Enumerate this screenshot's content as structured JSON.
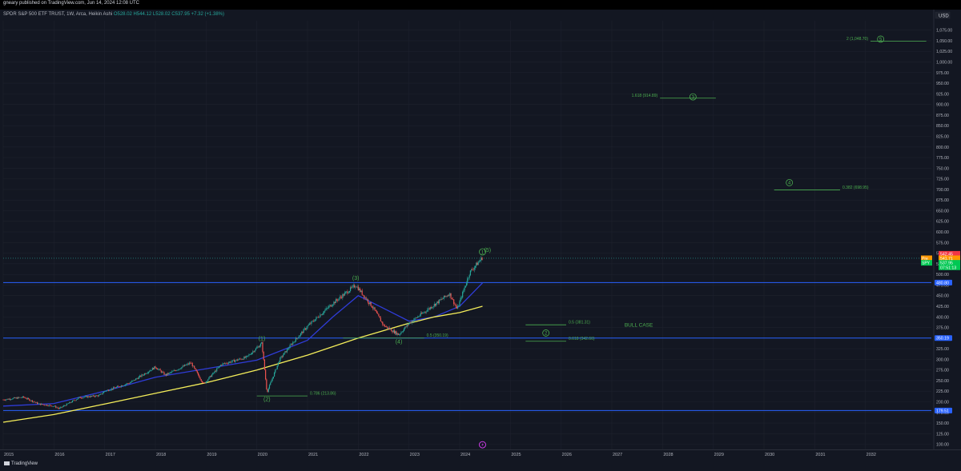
{
  "publisher_line": "gneary published on TradingView.com, Jun 14, 2024 12:08 UTC",
  "legend": {
    "symbol": "SPDR S&P 500 ETF TRUST, 1W, Arca, Heikin Ashi",
    "open": "O528.02",
    "high": "H544.12",
    "low": "L528.02",
    "close": "C537.95",
    "change": "+7.32 (+1.38%)"
  },
  "currency_button": "USD",
  "footer_brand": "TradingView",
  "colors": {
    "background": "#131722",
    "up_candle": "#26a69a",
    "down_candle": "#ef5350",
    "ma_fast": "#2f3cd8",
    "ma_slow": "#f5ee5a",
    "level_line": "#2962ff",
    "annotation": "#4caf50",
    "price_tag": "#00c853"
  },
  "chart_data": {
    "type": "candlestick",
    "title": "",
    "x_ticks": [
      "2015",
      "2016",
      "2017",
      "2018",
      "2019",
      "2020",
      "2021",
      "2022",
      "2023",
      "2024",
      "2025",
      "2026",
      "2027",
      "2028",
      "2029",
      "2030",
      "2031",
      "2032"
    ],
    "y_ticks": [
      "100.00",
      "125.00",
      "150.00",
      "175.00",
      "200.00",
      "225.00",
      "250.00",
      "275.00",
      "300.00",
      "325.00",
      "350.00",
      "375.00",
      "400.00",
      "425.00",
      "450.00",
      "475.00",
      "500.00",
      "525.00",
      "550.00",
      "575.00",
      "600.00",
      "625.00",
      "650.00",
      "675.00",
      "700.00",
      "725.00",
      "750.00",
      "775.00",
      "800.00",
      "825.00",
      "850.00",
      "875.00",
      "900.00",
      "925.00",
      "950.00",
      "975.00",
      "1,000.00",
      "1,025.00",
      "1,050.00",
      "1,075.00"
    ],
    "ylim": [
      88,
      1097
    ],
    "xlim": [
      2015.0,
      2033.3
    ],
    "price_path": [
      [
        2015.0,
        205
      ],
      [
        2015.4,
        211
      ],
      [
        2015.7,
        195
      ],
      [
        2016.0,
        190
      ],
      [
        2016.1,
        184
      ],
      [
        2016.5,
        210
      ],
      [
        2016.9,
        215
      ],
      [
        2017.0,
        225
      ],
      [
        2017.5,
        245
      ],
      [
        2018.0,
        282
      ],
      [
        2018.2,
        263
      ],
      [
        2018.7,
        292
      ],
      [
        2018.95,
        242
      ],
      [
        2019.3,
        288
      ],
      [
        2019.8,
        305
      ],
      [
        2020.1,
        338
      ],
      [
        2020.2,
        222
      ],
      [
        2020.45,
        300
      ],
      [
        2020.7,
        338
      ],
      [
        2021.0,
        378
      ],
      [
        2021.5,
        432
      ],
      [
        2021.95,
        475
      ],
      [
        2022.3,
        420
      ],
      [
        2022.5,
        380
      ],
      [
        2022.8,
        358
      ],
      [
        2023.0,
        385
      ],
      [
        2023.4,
        420
      ],
      [
        2023.8,
        455
      ],
      [
        2023.95,
        418
      ],
      [
        2024.2,
        505
      ],
      [
        2024.45,
        540
      ]
    ],
    "moving_averages": [
      {
        "color": "#2f3cd8",
        "values": [
          [
            2015.0,
            190
          ],
          [
            2016.0,
            196
          ],
          [
            2017.0,
            225
          ],
          [
            2018.0,
            258
          ],
          [
            2019.0,
            278
          ],
          [
            2020.0,
            298
          ],
          [
            2021.0,
            345
          ],
          [
            2021.5,
            400
          ],
          [
            2022.0,
            450
          ],
          [
            2022.5,
            420
          ],
          [
            2023.0,
            390
          ],
          [
            2023.5,
            400
          ],
          [
            2024.0,
            425
          ],
          [
            2024.45,
            480
          ]
        ]
      },
      {
        "color": "#f5ee5a",
        "values": [
          [
            2015.0,
            152
          ],
          [
            2016.0,
            170
          ],
          [
            2017.0,
            195
          ],
          [
            2018.0,
            220
          ],
          [
            2019.0,
            245
          ],
          [
            2020.0,
            275
          ],
          [
            2021.0,
            310
          ],
          [
            2022.0,
            350
          ],
          [
            2023.0,
            385
          ],
          [
            2023.5,
            400
          ],
          [
            2024.0,
            410
          ],
          [
            2024.45,
            425
          ]
        ]
      }
    ],
    "horizontal_levels": [
      {
        "value": 480.8,
        "label": "480.80"
      },
      {
        "value": 350.19,
        "label": "350.19"
      },
      {
        "value": 179.51,
        "label": "179.51"
      }
    ],
    "price_tags": [
      {
        "value": 548.5,
        "label": "542.45",
        "color": "#f23645",
        "prefix": ""
      },
      {
        "value": 537.9,
        "label": "541.71",
        "color": "#ff9800",
        "prefix": "Pre"
      },
      {
        "value": 527.3,
        "label": "537.95",
        "color": "#00c853",
        "prefix": "SPY"
      },
      {
        "value": 516.7,
        "label": "07:51:13",
        "color": "#00c853",
        "prefix": ""
      }
    ],
    "current_price_line": 537.95,
    "wave_labels": [
      {
        "text": "(1)",
        "x": 2020.1,
        "y": 345
      },
      {
        "text": "(2)",
        "x": 2020.2,
        "y": 202
      },
      {
        "text": "(3)",
        "x": 221.95,
        "y": 487
      },
      {
        "text": "(4)",
        "x": 2022.8,
        "y": 337
      },
      {
        "text": "(5)",
        "x": 2024.55,
        "y": 553
      }
    ],
    "circled_labels": [
      {
        "text": "1",
        "x": 2024.45,
        "y": 553
      },
      {
        "text": "2",
        "x": 2025.7,
        "y": 362
      },
      {
        "text": "3",
        "x": 2028.6,
        "y": 918
      },
      {
        "text": "4",
        "x": 2030.5,
        "y": 716
      },
      {
        "text": "5",
        "x": 2032.3,
        "y": 1054
      }
    ],
    "fib_levels": [
      {
        "text": "0.786 (213.86)",
        "x1": 2020.0,
        "x2": 2021.0,
        "y": 213.86,
        "label_side": "right"
      },
      {
        "text": "0.5 (350.19)",
        "x1": 2021.7,
        "x2": 2023.3,
        "y": 350.19,
        "label_side": "right"
      },
      {
        "text": "0.5 (381.31)",
        "x1": 2025.3,
        "x2": 2026.1,
        "y": 381.31,
        "label_side": "right"
      },
      {
        "text": "0.618 (342.66)",
        "x1": 2025.3,
        "x2": 2026.1,
        "y": 342.66,
        "label_side": "right"
      },
      {
        "text": "1.618 (914.89)",
        "x1": 2027.95,
        "x2": 2029.05,
        "y": 914.89,
        "label_side": "left"
      },
      {
        "text": "0.382 (698.95)",
        "x1": 2030.2,
        "x2": 2031.5,
        "y": 698.95,
        "label_side": "right"
      },
      {
        "text": "2 (1,048.70)",
        "x1": 2032.1,
        "x2": 2033.2,
        "y": 1048.7,
        "label_side": "left"
      }
    ],
    "annotation_text": {
      "text": "BULL CASE",
      "x": 2027.25,
      "y": 377
    },
    "event_marker": {
      "x": 2024.45,
      "y": 99
    }
  }
}
